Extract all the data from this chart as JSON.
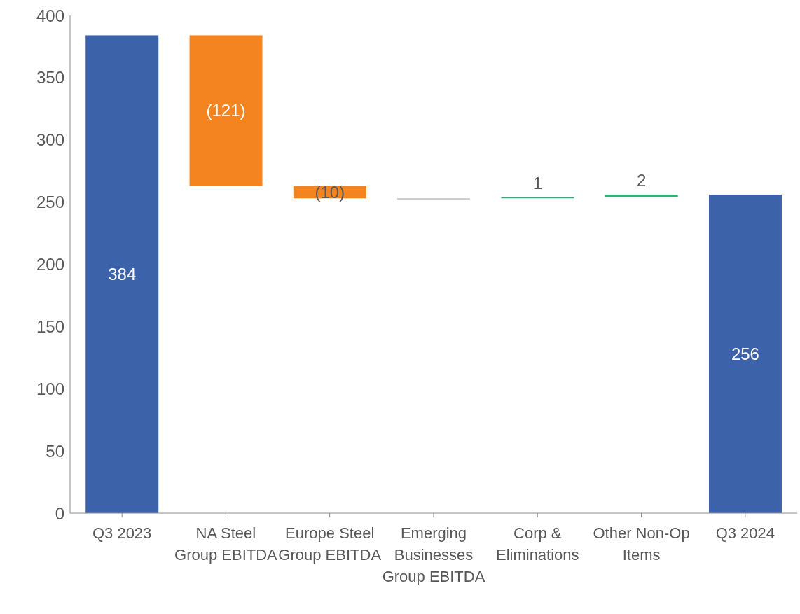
{
  "chart_data": {
    "type": "bar",
    "categories": [
      "Q3 2023",
      "NA Steel Group EBITDA",
      "Europe Steel Group EBITDA",
      "Emerging Businesses Group EBITDA",
      "Corp & Eliminations",
      "Other Non-Op Items",
      "Q3 2024"
    ],
    "values": [
      384,
      -121,
      -10,
      0,
      1,
      2,
      256
    ],
    "base": [
      0,
      384,
      263,
      253,
      253,
      254,
      0
    ],
    "colors": [
      "#3c62aa",
      "#f4841f",
      "#f4841f",
      "#bfbfbf",
      "#3daa78",
      "#3daa78",
      "#3c62aa"
    ],
    "value_labels": [
      "384",
      "(121)",
      "(10)",
      null,
      "1",
      "2",
      "256"
    ],
    "ylim": [
      0,
      400
    ],
    "yticks": [
      0,
      50,
      100,
      150,
      200,
      250,
      300,
      350,
      400
    ]
  }
}
